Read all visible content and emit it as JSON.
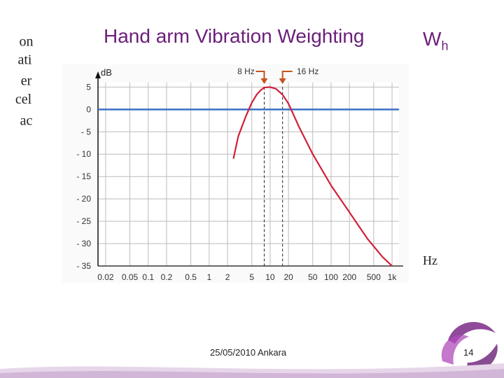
{
  "slide": {
    "title": "Hand arm Vibration Weighting",
    "weighting_symbol": "W",
    "weighting_subscript": "h",
    "side_label_parts": [
      "ac",
      "cel",
      "er",
      "ati",
      "on"
    ],
    "x_unit_label": "Hz",
    "date_location": "25/05/2010 Ankara",
    "page_number": "14"
  },
  "colors": {
    "title": "#6b1f7a",
    "curve": "#d0203a",
    "reference_line": "#3a6fc4",
    "arrow": "#c4531a",
    "grid": "#bcbcbc"
  },
  "chart_data": {
    "type": "line",
    "title": "",
    "ylabel": "dB",
    "xlabel": "Hz",
    "x_scale": "log",
    "x_ticks": [
      0.02,
      0.05,
      0.1,
      0.2,
      0.5,
      1,
      2,
      5,
      10,
      20,
      50,
      100,
      200,
      500,
      1000
    ],
    "x_tick_labels": [
      "0.02",
      "0.05",
      "0.1",
      "0.2",
      "0.5",
      "1",
      "2",
      "5",
      "10",
      "20",
      "50",
      "100",
      "200",
      "500",
      "1k"
    ],
    "xlim": [
      0.015,
      1300
    ],
    "y_ticks": [
      5,
      0,
      -5,
      -10,
      -15,
      -20,
      -25,
      -30,
      -35
    ],
    "y_tick_labels": [
      "5",
      "0",
      "- 5",
      "- 10",
      "- 15",
      "- 20",
      "- 25",
      "- 30",
      "- 35"
    ],
    "ylim": [
      -35,
      6
    ],
    "grid": true,
    "series": [
      {
        "name": "Wh weighting",
        "x": [
          2.5,
          3,
          4,
          5,
          6,
          7,
          8,
          10,
          12.5,
          16,
          20,
          30,
          50,
          100,
          200,
          400,
          700,
          1000
        ],
        "y": [
          -11,
          -6,
          -1.5,
          1.5,
          3.3,
          4.3,
          4.9,
          5.0,
          4.6,
          3.3,
          1.3,
          -4,
          -10,
          -17,
          -23,
          -29,
          -33,
          -35
        ]
      },
      {
        "name": "0 dB reference",
        "x": [
          0.015,
          1300
        ],
        "y": [
          0,
          0
        ]
      }
    ],
    "annotations": [
      {
        "text": "8 Hz",
        "x": 8
      },
      {
        "text": "16 Hz",
        "x": 16
      }
    ],
    "dashed_guides": [
      8,
      16
    ]
  }
}
